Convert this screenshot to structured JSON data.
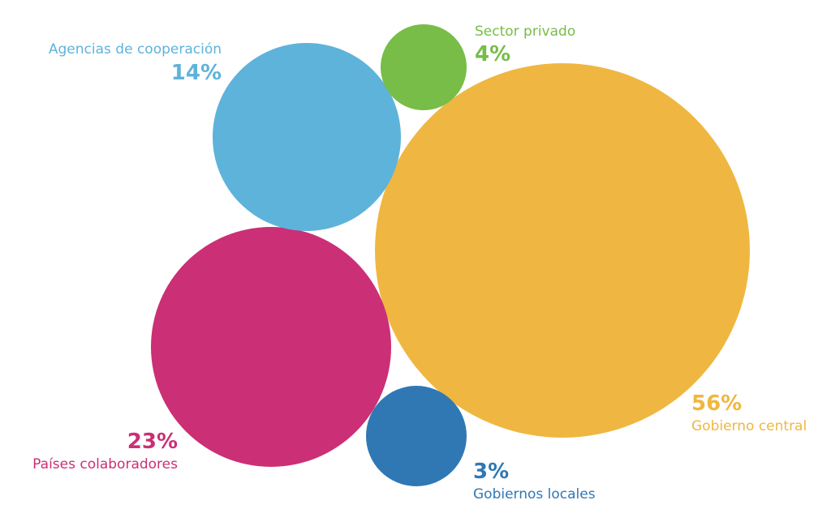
{
  "chart_data": {
    "type": "bubble",
    "series": [
      {
        "name": "Gobierno central",
        "value": 56,
        "value_label": "56%",
        "color": "#efb741"
      },
      {
        "name": "Países colaboradores",
        "value": 23,
        "value_label": "23%",
        "color": "#cb2f76"
      },
      {
        "name": "Agencias de cooperación",
        "value": 14,
        "value_label": "14%",
        "color": "#5eb3da"
      },
      {
        "name": "Sector privado",
        "value": 4,
        "value_label": "4%",
        "color": "#77bd47"
      },
      {
        "name": "Gobiernos locales",
        "value": 3,
        "value_label": "3%",
        "color": "#2f78b4"
      }
    ]
  }
}
